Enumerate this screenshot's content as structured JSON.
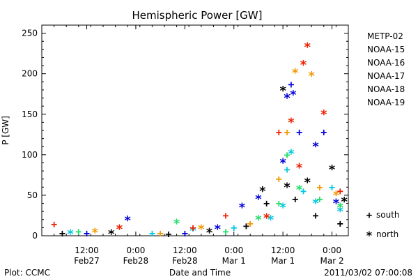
{
  "chart_data": {
    "type": "scatter",
    "title": "Hemispheric Power [GW]",
    "xlabel": "Date and Time",
    "ylabel": "P [GW]",
    "ylim": [
      0,
      260
    ],
    "yticks": [
      0,
      50,
      100,
      150,
      200,
      250
    ],
    "xlim": [
      "2011-02-27 01:00",
      "2011-03-02 04:00"
    ],
    "xticks": [
      {
        "t": "2011-02-27 12:00",
        "line1": "12:00",
        "line2": "Feb27"
      },
      {
        "t": "2011-02-28 00:00",
        "line1": "0:00",
        "line2": "Feb28"
      },
      {
        "t": "2011-02-28 12:00",
        "line1": "12:00",
        "line2": "Feb28"
      },
      {
        "t": "2011-03-01 00:00",
        "line1": "0:00",
        "line2": "Mar 1"
      },
      {
        "t": "2011-03-01 12:00",
        "line1": "12:00",
        "line2": "Mar 1"
      },
      {
        "t": "2011-03-02 00:00",
        "line1": "0:00",
        "line2": "Mar 2"
      }
    ],
    "marker_legend": [
      {
        "symbol": "+",
        "label": "south"
      },
      {
        "symbol": "*",
        "label": "north"
      }
    ],
    "series": [
      {
        "name": "METP-02",
        "color": "#000000",
        "points": [
          {
            "t": "2011-02-27 06:00",
            "y": 3,
            "hemi": "south"
          },
          {
            "t": "2011-02-27 18:00",
            "y": 2,
            "hemi": "north"
          },
          {
            "t": "2011-02-28 08:00",
            "y": 2,
            "hemi": "south"
          },
          {
            "t": "2011-02-28 18:00",
            "y": 4,
            "hemi": "north"
          },
          {
            "t": "2011-03-01 03:00",
            "y": 12,
            "hemi": "south"
          },
          {
            "t": "2011-03-01 07:00",
            "y": 55,
            "hemi": "north"
          },
          {
            "t": "2011-03-01 08:00",
            "y": 40,
            "hemi": "south"
          },
          {
            "t": "2011-03-01 12:00",
            "y": 179,
            "hemi": "north"
          },
          {
            "t": "2011-03-01 13:00",
            "y": 60,
            "hemi": "north"
          },
          {
            "t": "2011-03-01 15:00",
            "y": 45,
            "hemi": "south"
          },
          {
            "t": "2011-03-01 18:00",
            "y": 66,
            "hemi": "north"
          },
          {
            "t": "2011-03-01 20:00",
            "y": 25,
            "hemi": "south"
          },
          {
            "t": "2011-03-02 00:00",
            "y": 82,
            "hemi": "north"
          },
          {
            "t": "2011-03-02 02:00",
            "y": 15,
            "hemi": "south"
          },
          {
            "t": "2011-03-02 03:00",
            "y": 42,
            "hemi": "north"
          }
        ]
      },
      {
        "name": "NOAA-15",
        "color": "#0000dd",
        "points": [
          {
            "t": "2011-02-27 12:00",
            "y": 3,
            "hemi": "south"
          },
          {
            "t": "2011-02-27 22:00",
            "y": 19,
            "hemi": "north"
          },
          {
            "t": "2011-02-28 12:00",
            "y": 3,
            "hemi": "south"
          },
          {
            "t": "2011-02-28 20:00",
            "y": 8,
            "hemi": "north"
          },
          {
            "t": "2011-03-01 02:00",
            "y": 35,
            "hemi": "north"
          },
          {
            "t": "2011-03-01 06:00",
            "y": 45,
            "hemi": "north"
          },
          {
            "t": "2011-03-01 12:00",
            "y": 90,
            "hemi": "north"
          },
          {
            "t": "2011-03-01 13:00",
            "y": 170,
            "hemi": "north"
          },
          {
            "t": "2011-03-01 14:00",
            "y": 187,
            "hemi": "south"
          },
          {
            "t": "2011-03-01 14:30",
            "y": 174,
            "hemi": "north"
          },
          {
            "t": "2011-03-01 16:00",
            "y": 128,
            "hemi": "south"
          },
          {
            "t": "2011-03-01 20:00",
            "y": 110,
            "hemi": "north"
          },
          {
            "t": "2011-03-01 22:00",
            "y": 128,
            "hemi": "south"
          },
          {
            "t": "2011-03-02 01:00",
            "y": 40,
            "hemi": "north"
          }
        ]
      },
      {
        "name": "NOAA-16",
        "color": "#00c8e0",
        "points": [
          {
            "t": "2011-02-27 08:00",
            "y": 2,
            "hemi": "north"
          },
          {
            "t": "2011-02-28 04:00",
            "y": 3,
            "hemi": "south"
          },
          {
            "t": "2011-02-28 14:00",
            "y": 6,
            "hemi": "north"
          },
          {
            "t": "2011-03-01 00:00",
            "y": 10,
            "hemi": "south"
          },
          {
            "t": "2011-03-01 09:00",
            "y": 20,
            "hemi": "north"
          },
          {
            "t": "2011-03-01 12:00",
            "y": 35,
            "hemi": "north"
          },
          {
            "t": "2011-03-01 13:00",
            "y": 82,
            "hemi": "south"
          },
          {
            "t": "2011-03-01 14:00",
            "y": 101,
            "hemi": "north"
          },
          {
            "t": "2011-03-01 17:00",
            "y": 55,
            "hemi": "south"
          },
          {
            "t": "2011-03-01 20:00",
            "y": 40,
            "hemi": "north"
          },
          {
            "t": "2011-03-02 00:00",
            "y": 60,
            "hemi": "south"
          },
          {
            "t": "2011-03-02 02:00",
            "y": 30,
            "hemi": "north"
          }
        ]
      },
      {
        "name": "NOAA-17",
        "color": "#22dd66",
        "points": [
          {
            "t": "2011-02-27 10:00",
            "y": 5,
            "hemi": "south"
          },
          {
            "t": "2011-02-28 10:00",
            "y": 15,
            "hemi": "north"
          },
          {
            "t": "2011-02-28 22:00",
            "y": 5,
            "hemi": "south"
          },
          {
            "t": "2011-03-01 06:00",
            "y": 20,
            "hemi": "north"
          },
          {
            "t": "2011-03-01 11:00",
            "y": 40,
            "hemi": "south"
          },
          {
            "t": "2011-03-01 13:00",
            "y": 100,
            "hemi": "south"
          },
          {
            "t": "2011-03-01 16:00",
            "y": 57,
            "hemi": "north"
          },
          {
            "t": "2011-03-01 21:00",
            "y": 45,
            "hemi": "south"
          },
          {
            "t": "2011-03-02 02:00",
            "y": 35,
            "hemi": "north"
          }
        ]
      },
      {
        "name": "NOAA-18",
        "color": "#f09a00",
        "points": [
          {
            "t": "2011-02-27 14:00",
            "y": 4,
            "hemi": "north"
          },
          {
            "t": "2011-02-28 06:00",
            "y": 3,
            "hemi": "south"
          },
          {
            "t": "2011-02-28 16:00",
            "y": 8,
            "hemi": "north"
          },
          {
            "t": "2011-03-01 04:00",
            "y": 15,
            "hemi": "south"
          },
          {
            "t": "2011-03-01 11:00",
            "y": 70,
            "hemi": "south"
          },
          {
            "t": "2011-03-01 13:00",
            "y": 128,
            "hemi": "south"
          },
          {
            "t": "2011-03-01 15:00",
            "y": 201,
            "hemi": "north"
          },
          {
            "t": "2011-03-01 19:00",
            "y": 197,
            "hemi": "north"
          },
          {
            "t": "2011-03-01 21:00",
            "y": 60,
            "hemi": "south"
          },
          {
            "t": "2011-03-02 01:00",
            "y": 50,
            "hemi": "north"
          }
        ]
      },
      {
        "name": "NOAA-19",
        "color": "#ee2200",
        "points": [
          {
            "t": "2011-02-27 04:00",
            "y": 14,
            "hemi": "south"
          },
          {
            "t": "2011-02-27 20:00",
            "y": 8,
            "hemi": "north"
          },
          {
            "t": "2011-02-28 14:00",
            "y": 10,
            "hemi": "south"
          },
          {
            "t": "2011-02-28 22:00",
            "y": 25,
            "hemi": "south"
          },
          {
            "t": "2011-03-01 08:00",
            "y": 22,
            "hemi": "north"
          },
          {
            "t": "2011-03-01 11:00",
            "y": 128,
            "hemi": "south"
          },
          {
            "t": "2011-03-01 14:00",
            "y": 140,
            "hemi": "north"
          },
          {
            "t": "2011-03-01 16:00",
            "y": 84,
            "hemi": "north"
          },
          {
            "t": "2011-03-01 17:00",
            "y": 211,
            "hemi": "north"
          },
          {
            "t": "2011-03-01 18:00",
            "y": 233,
            "hemi": "north"
          },
          {
            "t": "2011-03-01 22:00",
            "y": 150,
            "hemi": "north"
          },
          {
            "t": "2011-03-02 02:00",
            "y": 55,
            "hemi": "south"
          }
        ]
      }
    ]
  },
  "footer": {
    "plot_credit": "Plot: CCMC",
    "timestamp": "2011/03/02 07:00:08"
  }
}
